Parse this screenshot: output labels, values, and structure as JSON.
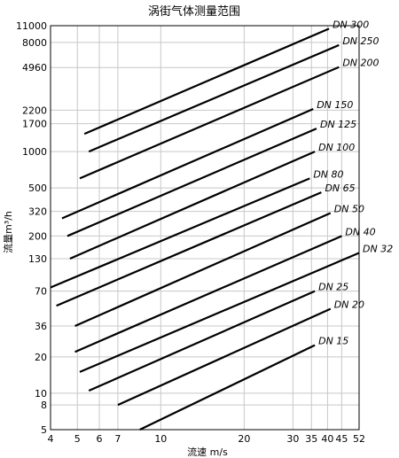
{
  "chart_data": {
    "type": "line",
    "title": "涡街气体测量范围",
    "xlabel": "流速 m/s",
    "ylabel": "流量m³/h",
    "x_scale": "log",
    "y_scale": "log",
    "xlim": [
      4,
      52
    ],
    "ylim": [
      5,
      11000
    ],
    "grid": true,
    "x_ticks": [
      4,
      5,
      6,
      7,
      10,
      20,
      30,
      35,
      40,
      45,
      52
    ],
    "x_tick_labels": [
      "4",
      "5",
      "6",
      "7",
      "10",
      "20",
      "30",
      "35",
      "40",
      "45",
      "52"
    ],
    "y_ticks": [
      5,
      8,
      10,
      20,
      36,
      70,
      130,
      200,
      320,
      500,
      1000,
      1700,
      2200,
      4960,
      8000,
      11000
    ],
    "y_tick_labels": [
      "5",
      "8",
      "10",
      "20",
      "36",
      "70",
      "130",
      "200",
      "320",
      "500",
      "1000",
      "1700",
      "2200",
      "4960",
      "8000",
      "11000"
    ],
    "series": [
      {
        "name": "DN 300",
        "x": [
          5.3,
          40.5
        ],
        "y": [
          1400,
          10400
        ]
      },
      {
        "name": "DN 250",
        "x": [
          5.5,
          44
        ],
        "y": [
          1000,
          7600
        ]
      },
      {
        "name": "DN 200",
        "x": [
          5.1,
          44
        ],
        "y": [
          600,
          5000
        ]
      },
      {
        "name": "DN 150",
        "x": [
          4.4,
          35.5
        ],
        "y": [
          280,
          2250
        ]
      },
      {
        "name": "DN 125",
        "x": [
          4.6,
          36.5
        ],
        "y": [
          200,
          1550
        ]
      },
      {
        "name": "DN 100",
        "x": [
          4.7,
          36
        ],
        "y": [
          130,
          1000
        ]
      },
      {
        "name": "DN 80",
        "x": [
          4.0,
          34.5
        ],
        "y": [
          75,
          600
        ]
      },
      {
        "name": "DN 65",
        "x": [
          4.2,
          38
        ],
        "y": [
          53,
          460
        ]
      },
      {
        "name": "DN 50",
        "x": [
          4.9,
          41
        ],
        "y": [
          36,
          310
        ]
      },
      {
        "name": "DN 40",
        "x": [
          4.9,
          45
        ],
        "y": [
          22,
          200
        ]
      },
      {
        "name": "DN 32",
        "x": [
          5.1,
          52
        ],
        "y": [
          15,
          145
        ]
      },
      {
        "name": "DN 25",
        "x": [
          5.5,
          36
        ],
        "y": [
          10.5,
          70
        ]
      },
      {
        "name": "DN 20",
        "x": [
          7.0,
          41
        ],
        "y": [
          8,
          50
        ]
      },
      {
        "name": "DN 15",
        "x": [
          8.4,
          36
        ],
        "y": [
          5,
          25
        ]
      }
    ]
  }
}
